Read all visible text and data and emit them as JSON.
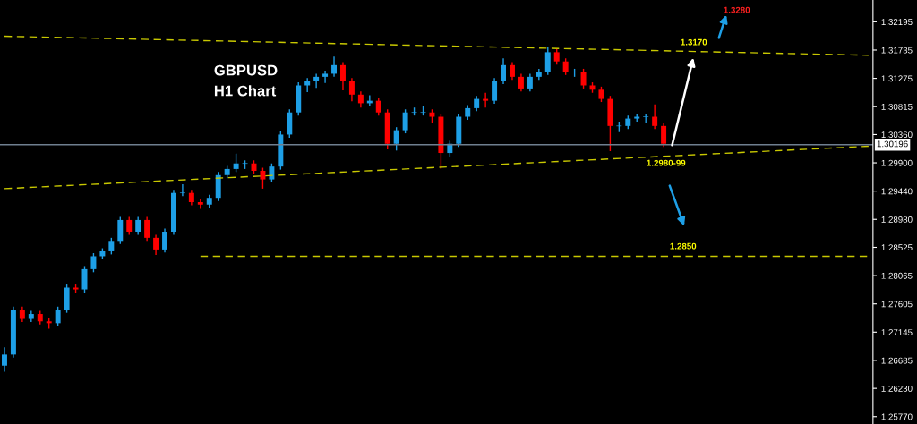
{
  "chart_data": {
    "type": "candlestick",
    "title": "GBPUSD",
    "subtitle": "H1 Chart",
    "categories": [
      null,
      null,
      null,
      null,
      null,
      null,
      null,
      null,
      null,
      null,
      null,
      null,
      null,
      null,
      null,
      null,
      null,
      null,
      null,
      null,
      null,
      null,
      null,
      null,
      null,
      null,
      null,
      null,
      null,
      null,
      null,
      null,
      null,
      null,
      null,
      null,
      null,
      null,
      null,
      null,
      null,
      null,
      null,
      null,
      null,
      null,
      null,
      null,
      null,
      null,
      null,
      null,
      null,
      null,
      null,
      null,
      null,
      null,
      null,
      null,
      null,
      null,
      null,
      null,
      null,
      null,
      null,
      null,
      null,
      null,
      null,
      null,
      null,
      null,
      null,
      null,
      null,
      null,
      null,
      null,
      null,
      null,
      null,
      null,
      null,
      null,
      null,
      null,
      null,
      null,
      null,
      null,
      null,
      null,
      null,
      null,
      null,
      null
    ],
    "ohlc": [
      [
        1.266,
        1.269,
        1.265,
        1.2678
      ],
      [
        1.2678,
        1.2756,
        1.2673,
        1.2751
      ],
      [
        1.2751,
        1.2756,
        1.2731,
        1.2736
      ],
      [
        1.2736,
        1.2749,
        1.2731,
        1.2744
      ],
      [
        1.2744,
        1.2749,
        1.2727,
        1.2732
      ],
      [
        1.2732,
        1.2737,
        1.272,
        1.2729
      ],
      [
        1.2729,
        1.2756,
        1.2724,
        1.2751
      ],
      [
        1.2751,
        1.2792,
        1.2746,
        1.2787
      ],
      [
        1.2787,
        1.2792,
        1.2779,
        1.2784
      ],
      [
        1.2784,
        1.2822,
        1.2779,
        1.2817
      ],
      [
        1.2817,
        1.2843,
        1.2812,
        1.2838
      ],
      [
        1.2838,
        1.2851,
        1.2833,
        1.2846
      ],
      [
        1.2846,
        1.2868,
        1.2841,
        1.2863
      ],
      [
        1.2863,
        1.2902,
        1.2858,
        1.2897
      ],
      [
        1.2897,
        1.2902,
        1.2873,
        1.2878
      ],
      [
        1.2878,
        1.2902,
        1.2873,
        1.2897
      ],
      [
        1.2897,
        1.2902,
        1.2863,
        1.2868
      ],
      [
        1.2868,
        1.2873,
        1.284,
        1.2849
      ],
      [
        1.2849,
        1.2883,
        1.2844,
        1.2878
      ],
      [
        1.2878,
        1.2946,
        1.2873,
        1.2941
      ],
      [
        1.2941,
        1.2955,
        1.2936,
        1.2941
      ],
      [
        1.2941,
        1.2946,
        1.2921,
        1.2926
      ],
      [
        1.2926,
        1.2931,
        1.2915,
        1.2922
      ],
      [
        1.2922,
        1.2938,
        1.2917,
        1.2933
      ],
      [
        1.2933,
        1.2975,
        1.2928,
        1.297
      ],
      [
        1.297,
        1.2985,
        1.2965,
        1.298
      ],
      [
        1.298,
        1.3005,
        1.2975,
        1.2989
      ],
      [
        1.2989,
        1.2994,
        1.298,
        1.2989
      ],
      [
        1.2989,
        1.2994,
        1.2972,
        1.2977
      ],
      [
        1.2977,
        1.2982,
        1.2948,
        1.2963
      ],
      [
        1.2963,
        1.2989,
        1.2958,
        1.2984
      ],
      [
        1.2984,
        1.3041,
        1.2979,
        1.3036
      ],
      [
        1.3036,
        1.3077,
        1.3031,
        1.3072
      ],
      [
        1.3072,
        1.3121,
        1.3067,
        1.3116
      ],
      [
        1.3116,
        1.3128,
        1.3105,
        1.3123
      ],
      [
        1.3123,
        1.3135,
        1.3112,
        1.313
      ],
      [
        1.313,
        1.314,
        1.312,
        1.3135
      ],
      [
        1.3135,
        1.3163,
        1.313,
        1.3149
      ],
      [
        1.3149,
        1.3154,
        1.3108,
        1.3123
      ],
      [
        1.3123,
        1.3128,
        1.309,
        1.3101
      ],
      [
        1.3101,
        1.3106,
        1.308,
        1.3087
      ],
      [
        1.3087,
        1.31,
        1.3082,
        1.3091
      ],
      [
        1.3091,
        1.3096,
        1.3067,
        1.3072
      ],
      [
        1.3072,
        1.3077,
        1.3012,
        1.3021
      ],
      [
        1.3021,
        1.3048,
        1.301,
        1.3043
      ],
      [
        1.3043,
        1.3077,
        1.3038,
        1.3072
      ],
      [
        1.3072,
        1.308,
        1.3067,
        1.3072
      ],
      [
        1.3072,
        1.3082,
        1.3067,
        1.3072
      ],
      [
        1.3072,
        1.3077,
        1.3055,
        1.3065
      ],
      [
        1.3065,
        1.307,
        1.298,
        1.3006
      ],
      [
        1.3006,
        1.3026,
        1.3,
        1.3021
      ],
      [
        1.3021,
        1.307,
        1.3016,
        1.3065
      ],
      [
        1.3065,
        1.3084,
        1.306,
        1.3079
      ],
      [
        1.3079,
        1.3099,
        1.3074,
        1.3094
      ],
      [
        1.3094,
        1.3104,
        1.308,
        1.3091
      ],
      [
        1.3091,
        1.3128,
        1.3086,
        1.3123
      ],
      [
        1.3123,
        1.316,
        1.3118,
        1.3149
      ],
      [
        1.3149,
        1.3154,
        1.3125,
        1.313
      ],
      [
        1.313,
        1.3135,
        1.3106,
        1.3111
      ],
      [
        1.3111,
        1.3135,
        1.3106,
        1.313
      ],
      [
        1.313,
        1.3143,
        1.3125,
        1.3138
      ],
      [
        1.3138,
        1.3179,
        1.3133,
        1.317
      ],
      [
        1.317,
        1.3175,
        1.315,
        1.3155
      ],
      [
        1.3155,
        1.316,
        1.3133,
        1.3138
      ],
      [
        1.3138,
        1.3143,
        1.313,
        1.3138
      ],
      [
        1.3138,
        1.3143,
        1.3111,
        1.3116
      ],
      [
        1.3116,
        1.3121,
        1.3104,
        1.3109
      ],
      [
        1.3109,
        1.3114,
        1.3089,
        1.3094
      ],
      [
        1.3094,
        1.3099,
        1.3009,
        1.305
      ],
      [
        1.305,
        1.3057,
        1.304,
        1.305
      ],
      [
        1.305,
        1.3067,
        1.3045,
        1.3062
      ],
      [
        1.3062,
        1.307,
        1.3057,
        1.3065
      ],
      [
        1.3065,
        1.307,
        1.3055,
        1.3065
      ],
      [
        1.3065,
        1.3085,
        1.3045,
        1.305
      ],
      [
        1.305,
        1.3055,
        1.3016,
        1.3021
      ],
      null,
      null,
      null,
      null,
      null,
      null,
      null,
      null,
      null,
      null,
      null,
      null,
      null,
      null,
      null,
      null,
      null,
      null,
      null,
      null,
      null,
      null,
      null
    ],
    "series": [
      {
        "type": "line",
        "color": "#c8c800",
        "line_style": "dashed",
        "values": [
          1.3196,
          null,
          null,
          null,
          null,
          null,
          null,
          null,
          null,
          null,
          null,
          null,
          null,
          null,
          null,
          null,
          null,
          null,
          null,
          null,
          null,
          null,
          null,
          null,
          null,
          null,
          null,
          null,
          null,
          null,
          null,
          null,
          null,
          null,
          null,
          null,
          null,
          null,
          null,
          null,
          null,
          null,
          null,
          null,
          null,
          null,
          null,
          null,
          null,
          null,
          null,
          null,
          null,
          null,
          null,
          null,
          null,
          null,
          null,
          null,
          null,
          null,
          null,
          null,
          null,
          null,
          null,
          null,
          null,
          null,
          null,
          null,
          null,
          null,
          null,
          null,
          null,
          null,
          null,
          null,
          null,
          null,
          null,
          null,
          null,
          null,
          null,
          null,
          null,
          null,
          null,
          null,
          null,
          null,
          null,
          null,
          null,
          1.3165
        ]
      },
      {
        "type": "line",
        "color": "#c8c800",
        "line_style": "dashed",
        "values": [
          1.2948,
          null,
          null,
          null,
          null,
          null,
          null,
          null,
          null,
          null,
          null,
          null,
          null,
          null,
          null,
          null,
          null,
          null,
          null,
          null,
          null,
          null,
          null,
          null,
          null,
          null,
          null,
          null,
          null,
          null,
          null,
          null,
          null,
          null,
          null,
          null,
          null,
          null,
          null,
          null,
          null,
          null,
          null,
          null,
          null,
          null,
          null,
          null,
          null,
          null,
          null,
          null,
          null,
          null,
          null,
          null,
          null,
          null,
          null,
          null,
          null,
          null,
          null,
          null,
          null,
          null,
          null,
          null,
          null,
          null,
          null,
          null,
          null,
          null,
          null,
          null,
          null,
          null,
          null,
          null,
          null,
          null,
          null,
          null,
          null,
          null,
          null,
          null,
          null,
          null,
          null,
          null,
          null,
          null,
          null,
          null,
          null,
          1.3017
        ]
      },
      {
        "type": "line",
        "color": "#c8c800",
        "line_style": "dashed",
        "values": [
          null,
          null,
          null,
          null,
          null,
          null,
          null,
          null,
          null,
          null,
          null,
          null,
          null,
          null,
          null,
          null,
          null,
          null,
          null,
          null,
          null,
          null,
          1.2838,
          null,
          null,
          null,
          null,
          null,
          null,
          null,
          null,
          null,
          null,
          null,
          null,
          null,
          null,
          null,
          null,
          null,
          null,
          null,
          null,
          null,
          null,
          null,
          null,
          null,
          null,
          null,
          null,
          null,
          null,
          null,
          null,
          null,
          null,
          null,
          null,
          null,
          null,
          null,
          null,
          null,
          null,
          null,
          null,
          null,
          null,
          null,
          null,
          null,
          null,
          null,
          null,
          null,
          null,
          null,
          null,
          null,
          null,
          null,
          null,
          null,
          null,
          null,
          null,
          null,
          null,
          null,
          null,
          null,
          null,
          null,
          null,
          null,
          null,
          1.2838
        ]
      }
    ],
    "ref_lines": [
      {
        "axis": "y",
        "value": 1.30196,
        "label": "1.30196",
        "color": "#6f7f8f"
      }
    ],
    "annotations": [
      "1.3280",
      "1.3170",
      "1.2980-99",
      "1.2850"
    ],
    "ylim": [
      1.2565,
      1.3255
    ],
    "yticks": [
      1.32195,
      1.31735,
      1.31275,
      1.30815,
      {
        "value": 1.3036,
        "label": "1.30360"
      },
      {
        "value": 1.299,
        "label": "1.29900"
      },
      {
        "value": 1.2944,
        "label": "1.29440"
      },
      {
        "value": 1.2898,
        "label": "1.28980"
      },
      1.28525,
      1.28065,
      1.27605,
      1.27145,
      1.26685,
      {
        "value": 1.2623,
        "label": "1.26230"
      },
      {
        "value": 1.2577,
        "label": "1.25770"
      }
    ],
    "grid": false
  }
}
